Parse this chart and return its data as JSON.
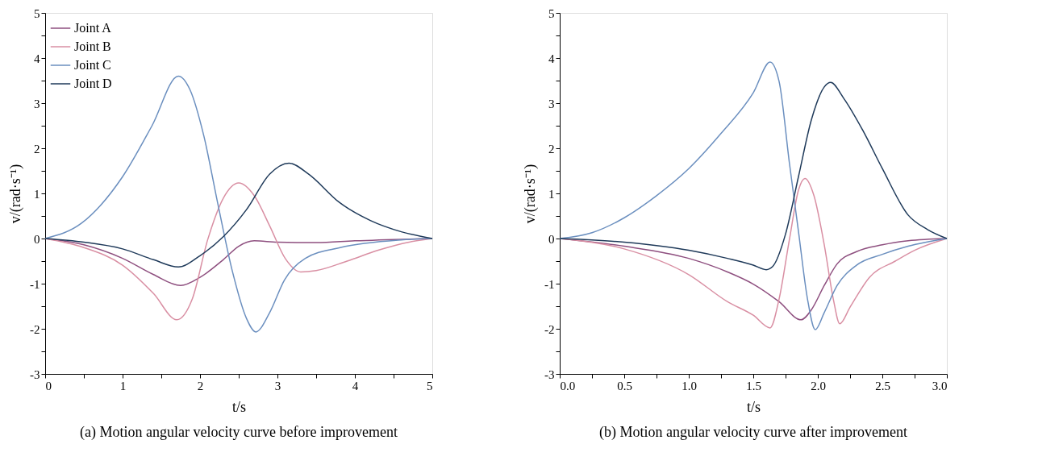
{
  "chart_data": [
    {
      "type": "line",
      "title": "(a) Motion angular velocity curve before improvement",
      "xlabel": "t/s",
      "ylabel": "v/(rad·s⁻¹)",
      "legend": "top left",
      "grid": false,
      "marker": "none",
      "line_style": "solid",
      "xlim": [
        0,
        5
      ],
      "ylim": [
        -3,
        5
      ],
      "xticks": [
        0,
        {
          "value": 0.5,
          "label": null
        },
        1,
        {
          "value": 1.5,
          "label": null
        },
        2,
        {
          "value": 2.5,
          "label": null
        },
        3,
        {
          "value": 3.5,
          "label": null
        },
        4,
        {
          "value": 4.5,
          "label": null
        },
        5
      ],
      "yticks": [
        -3,
        {
          "value": -2.5,
          "label": null
        },
        -2,
        {
          "value": -1.5,
          "label": null
        },
        -1,
        {
          "value": -0.5,
          "label": null
        },
        0,
        {
          "value": 0.5,
          "label": null
        },
        1,
        {
          "value": 1.5,
          "label": null
        },
        2,
        {
          "value": 2.5,
          "label": null
        },
        3,
        {
          "value": 3.5,
          "label": null
        },
        4,
        {
          "value": 4.5,
          "label": null
        },
        5
      ],
      "series": [
        {
          "name": "Joint A",
          "color": "#8e4f7f",
          "x": [
            0,
            0.5,
            1,
            1.4,
            1.75,
            2,
            2.3,
            2.5,
            2.7,
            3,
            3.5,
            4,
            5
          ],
          "values": [
            0,
            -0.14,
            -0.44,
            -0.8,
            -1.04,
            -0.86,
            -0.47,
            -0.17,
            -0.05,
            -0.08,
            -0.09,
            -0.05,
            0
          ]
        },
        {
          "name": "Joint B",
          "color": "#d98fa3",
          "x": [
            0,
            0.5,
            1,
            1.4,
            1.7,
            1.9,
            2.1,
            2.3,
            2.5,
            2.7,
            2.9,
            3.1,
            3.3,
            3.5,
            3.9,
            4.3,
            4.7,
            5
          ],
          "values": [
            0,
            -0.2,
            -0.59,
            -1.22,
            -1.8,
            -1.34,
            -0.02,
            0.89,
            1.23,
            0.95,
            0.28,
            -0.44,
            -0.74,
            -0.71,
            -0.5,
            -0.26,
            -0.08,
            0
          ]
        },
        {
          "name": "Joint C",
          "color": "#6b8fbf",
          "x": [
            0,
            0.47,
            1,
            1.38,
            1.72,
            1.87,
            2.05,
            2.23,
            2.42,
            2.6,
            2.72,
            2.9,
            3.09,
            3.36,
            3.81,
            4.6,
            5
          ],
          "values": [
            0,
            0.34,
            1.37,
            2.5,
            3.6,
            3.3,
            2.27,
            0.77,
            -0.74,
            -1.77,
            -2.07,
            -1.64,
            -0.92,
            -0.44,
            -0.2,
            -0.03,
            0
          ]
        },
        {
          "name": "Joint D",
          "color": "#1f3a5a",
          "x": [
            0,
            0.5,
            1,
            1.4,
            1.72,
            2,
            2.3,
            2.6,
            2.9,
            3.15,
            3.4,
            3.8,
            4.2,
            4.6,
            5
          ],
          "values": [
            0,
            -0.08,
            -0.23,
            -0.47,
            -0.63,
            -0.38,
            0.04,
            0.64,
            1.43,
            1.67,
            1.43,
            0.8,
            0.4,
            0.15,
            0
          ]
        }
      ]
    },
    {
      "type": "line",
      "title": "(b) Motion angular velocity curve after improvement",
      "xlabel": "t/s",
      "ylabel": "v/(rad·s⁻¹)",
      "legend": "top left",
      "grid": false,
      "marker": "none",
      "line_style": "solid",
      "xlim": [
        0,
        3
      ],
      "ylim": [
        -3,
        5
      ],
      "xticks": [
        {
          "value": 0,
          "label": "0.0"
        },
        {
          "value": 0.25,
          "label": null
        },
        0.5,
        {
          "value": 0.75,
          "label": null
        },
        {
          "value": 1,
          "label": "1.0"
        },
        {
          "value": 1.25,
          "label": null
        },
        1.5,
        {
          "value": 1.75,
          "label": null
        },
        {
          "value": 2,
          "label": "2.0"
        },
        {
          "value": 2.25,
          "label": null
        },
        2.5,
        {
          "value": 2.75,
          "label": null
        },
        {
          "value": 3,
          "label": "3.0"
        }
      ],
      "yticks": [
        -3,
        {
          "value": -2.5,
          "label": null
        },
        -2,
        {
          "value": -1.5,
          "label": null
        },
        -1,
        {
          "value": -0.5,
          "label": null
        },
        0,
        {
          "value": 0.5,
          "label": null
        },
        1,
        {
          "value": 1.5,
          "label": null
        },
        2,
        {
          "value": 2.5,
          "label": null
        },
        3,
        {
          "value": 3.5,
          "label": null
        },
        4,
        {
          "value": 4.5,
          "label": null
        },
        5
      ],
      "series": [
        {
          "name": "Joint A",
          "color": "#8e4f7f",
          "x": [
            0,
            0.5,
            1,
            1.3,
            1.5,
            1.7,
            1.87,
            1.95,
            2.05,
            2.15,
            2.3,
            2.5,
            2.7,
            3
          ],
          "values": [
            0,
            -0.17,
            -0.44,
            -0.74,
            -1.01,
            -1.4,
            -1.8,
            -1.58,
            -1.04,
            -0.56,
            -0.29,
            -0.14,
            -0.05,
            0
          ]
        },
        {
          "name": "Joint B",
          "color": "#d98fa3",
          "x": [
            0,
            0.5,
            1,
            1.3,
            1.5,
            1.63,
            1.7,
            1.78,
            1.85,
            1.9,
            1.97,
            2.05,
            2.12,
            2.17,
            2.25,
            2.4,
            2.6,
            2.75,
            3
          ],
          "values": [
            0,
            -0.23,
            -0.8,
            -1.4,
            -1.7,
            -1.98,
            -1.34,
            -0.02,
            1.07,
            1.33,
            0.95,
            -0.14,
            -1.34,
            -1.89,
            -1.52,
            -0.86,
            -0.5,
            -0.26,
            0
          ]
        },
        {
          "name": "Joint C",
          "color": "#6b8fbf",
          "x": [
            0,
            0.25,
            0.5,
            0.75,
            1,
            1.25,
            1.5,
            1.63,
            1.7,
            1.78,
            1.85,
            1.92,
            1.98,
            2.05,
            2.15,
            2.3,
            2.5,
            2.7,
            3
          ],
          "values": [
            0,
            0.13,
            0.46,
            0.95,
            1.55,
            2.33,
            3.23,
            3.91,
            3.48,
            1.67,
            0.16,
            -1.34,
            -2.02,
            -1.64,
            -1.04,
            -0.59,
            -0.35,
            -0.17,
            0
          ]
        },
        {
          "name": "Joint D",
          "color": "#1f3a5a",
          "x": [
            0,
            0.5,
            1,
            1.3,
            1.5,
            1.6,
            1.65,
            1.75,
            1.85,
            1.95,
            2.05,
            2.1,
            2.2,
            2.35,
            2.5,
            2.7,
            2.85,
            3
          ],
          "values": [
            0,
            -0.08,
            -0.26,
            -0.44,
            -0.59,
            -0.69,
            -0.62,
            0.1,
            1.37,
            2.63,
            3.36,
            3.46,
            3.11,
            2.39,
            1.55,
            0.52,
            0.2,
            0
          ]
        }
      ]
    }
  ]
}
